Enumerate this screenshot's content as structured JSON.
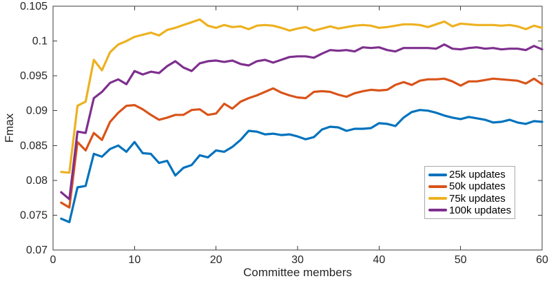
{
  "figure": {
    "background": "#ffffff",
    "axis_line_color": "#3b3b3b",
    "text_color": "#262626",
    "legend_border_color": "#a9a9a9"
  },
  "chart_data": {
    "type": "line",
    "title": "",
    "xlabel": "Committee members",
    "ylabel": "Fmax",
    "xlim": [
      0,
      60
    ],
    "ylim": [
      0.07,
      0.105
    ],
    "grid": false,
    "box": true,
    "tick_direction": "in",
    "legend_position": "bottom-right",
    "x_tick_values": [
      0,
      10,
      20,
      30,
      40,
      50,
      60
    ],
    "x_tick_labels": [
      "0",
      "10",
      "20",
      "30",
      "40",
      "50",
      "60"
    ],
    "y_tick_values": [
      0.07,
      0.075,
      0.08,
      0.085,
      0.09,
      0.095,
      0.1,
      0.105
    ],
    "y_tick_labels": [
      "0.07",
      "0.075",
      "0.08",
      "0.085",
      "0.09",
      "0.095",
      "0.1",
      "0.105"
    ],
    "x": [
      1,
      2,
      3,
      4,
      5,
      6,
      7,
      8,
      9,
      10,
      11,
      12,
      13,
      14,
      15,
      16,
      17,
      18,
      19,
      20,
      21,
      22,
      23,
      24,
      25,
      26,
      27,
      28,
      29,
      30,
      31,
      32,
      33,
      34,
      35,
      36,
      37,
      38,
      39,
      40,
      41,
      42,
      43,
      44,
      45,
      46,
      47,
      48,
      49,
      50,
      51,
      52,
      53,
      54,
      55,
      56,
      57,
      58,
      59,
      60
    ],
    "series": [
      {
        "name": "25k updates",
        "color": "#0072BD",
        "values": [
          0.0745,
          0.074,
          0.079,
          0.0792,
          0.0838,
          0.0834,
          0.0845,
          0.085,
          0.0841,
          0.0855,
          0.0839,
          0.0838,
          0.0825,
          0.0828,
          0.0807,
          0.0818,
          0.0822,
          0.0836,
          0.0833,
          0.0843,
          0.0841,
          0.0848,
          0.0858,
          0.0871,
          0.087,
          0.0866,
          0.0867,
          0.0865,
          0.0866,
          0.0863,
          0.0859,
          0.0862,
          0.0873,
          0.0877,
          0.0876,
          0.0871,
          0.0874,
          0.0874,
          0.0875,
          0.0882,
          0.0881,
          0.0878,
          0.089,
          0.0898,
          0.0901,
          0.09,
          0.0897,
          0.0893,
          0.089,
          0.0888,
          0.0891,
          0.0889,
          0.0887,
          0.0883,
          0.0884,
          0.0887,
          0.0883,
          0.0881,
          0.0885,
          0.0884
        ]
      },
      {
        "name": "50k updates",
        "color": "#D95319",
        "values": [
          0.0768,
          0.0761,
          0.0855,
          0.0843,
          0.0868,
          0.0858,
          0.0884,
          0.0897,
          0.0907,
          0.0908,
          0.0902,
          0.0894,
          0.0887,
          0.089,
          0.0894,
          0.0894,
          0.0901,
          0.0902,
          0.0894,
          0.0896,
          0.091,
          0.0903,
          0.0913,
          0.0918,
          0.0922,
          0.0927,
          0.0932,
          0.0926,
          0.0922,
          0.0919,
          0.0918,
          0.0927,
          0.0928,
          0.0927,
          0.0923,
          0.092,
          0.0925,
          0.0928,
          0.093,
          0.0929,
          0.093,
          0.0937,
          0.0941,
          0.0937,
          0.0943,
          0.0945,
          0.0945,
          0.0946,
          0.0942,
          0.0936,
          0.0942,
          0.0942,
          0.0944,
          0.0946,
          0.0945,
          0.0944,
          0.0943,
          0.0939,
          0.0946,
          0.0938
        ]
      },
      {
        "name": "75k updates",
        "color": "#EDB120",
        "values": [
          0.0812,
          0.0811,
          0.0907,
          0.0913,
          0.0973,
          0.0958,
          0.0984,
          0.0995,
          0.1,
          0.1006,
          0.1009,
          0.1012,
          0.1008,
          0.1016,
          0.1019,
          0.1023,
          0.1027,
          0.1031,
          0.1022,
          0.1019,
          0.1023,
          0.102,
          0.1021,
          0.1017,
          0.1022,
          0.1023,
          0.1022,
          0.1019,
          0.1015,
          0.1018,
          0.102,
          0.1015,
          0.1018,
          0.1021,
          0.1018,
          0.102,
          0.1022,
          0.1023,
          0.1022,
          0.1019,
          0.102,
          0.1022,
          0.1024,
          0.1024,
          0.1023,
          0.102,
          0.1024,
          0.1028,
          0.1021,
          0.1025,
          0.1024,
          0.1023,
          0.1023,
          0.1023,
          0.1022,
          0.1023,
          0.1021,
          0.1017,
          0.1022,
          0.1019
        ]
      },
      {
        "name": "100k updates",
        "color": "#7E2F8E",
        "values": [
          0.0783,
          0.0773,
          0.087,
          0.0868,
          0.0918,
          0.0927,
          0.094,
          0.0945,
          0.0938,
          0.0957,
          0.0952,
          0.0956,
          0.0954,
          0.0964,
          0.0971,
          0.0962,
          0.0957,
          0.0968,
          0.0971,
          0.0972,
          0.097,
          0.0972,
          0.0967,
          0.0965,
          0.0971,
          0.0973,
          0.0969,
          0.0973,
          0.0977,
          0.0978,
          0.0978,
          0.0976,
          0.0982,
          0.0987,
          0.0986,
          0.0987,
          0.0985,
          0.0991,
          0.099,
          0.0991,
          0.0987,
          0.0985,
          0.099,
          0.099,
          0.099,
          0.099,
          0.0989,
          0.0995,
          0.0989,
          0.0988,
          0.099,
          0.0991,
          0.0989,
          0.099,
          0.0988,
          0.0989,
          0.0989,
          0.0987,
          0.0993,
          0.0988
        ]
      }
    ]
  }
}
